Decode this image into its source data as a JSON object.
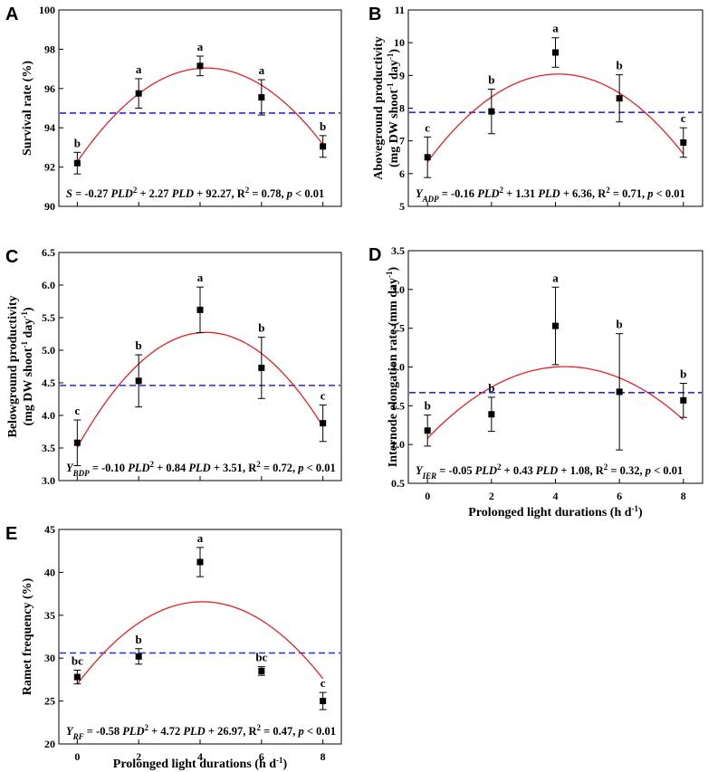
{
  "colors": {
    "fit": "#e8202a",
    "mean": "#2a2ae0",
    "axis": "#000000"
  },
  "chart_data": [
    {
      "panel": "A",
      "type": "scatter",
      "x": [
        0,
        2,
        4,
        6,
        8
      ],
      "values": [
        92.2,
        95.75,
        97.15,
        95.55,
        93.05
      ],
      "errors": [
        0.55,
        0.75,
        0.5,
        0.9,
        0.55
      ],
      "letters": [
        "b",
        "a",
        "a",
        "a",
        "b"
      ],
      "fit": {
        "a": -0.27,
        "b": 2.27,
        "c": 92.27
      },
      "mean_line": 94.75,
      "ylim": [
        90,
        100
      ],
      "yticks": [
        "90",
        "92",
        "94",
        "96",
        "98",
        "100"
      ],
      "ylabel": "Survival rate (%)",
      "eq": {
        "lead": "S",
        "sub": "",
        "c1": "-0.27",
        "c2": "+ 2.27",
        "c3": "+ 92.27",
        "r2": "= 0.78,",
        "p": "< 0.01"
      }
    },
    {
      "panel": "B",
      "type": "scatter",
      "x": [
        0,
        2,
        4,
        6,
        8
      ],
      "values": [
        6.5,
        7.9,
        9.7,
        8.3,
        6.95
      ],
      "errors": [
        0.62,
        0.68,
        0.45,
        0.72,
        0.45
      ],
      "letters": [
        "c",
        "b",
        "a",
        "b",
        "c"
      ],
      "fit": {
        "a": -0.16,
        "b": 1.31,
        "c": 6.36
      },
      "mean_line": 7.87,
      "ylim": [
        5,
        11
      ],
      "yticks": [
        "5",
        "6",
        "7",
        "8",
        "9",
        "10",
        "11"
      ],
      "ylabel": [
        "Aboveground productivity",
        "(mg DW shoot",
        "-1",
        " day",
        "-1",
        ")"
      ],
      "eq": {
        "lead": "Y",
        "sub": "ADP",
        "c1": "-0.16",
        "c2": "+ 1.31",
        "c3": "+ 6.36",
        "r2": "= 0.71,",
        "p": "< 0.01"
      }
    },
    {
      "panel": "C",
      "type": "scatter",
      "x": [
        0,
        2,
        4,
        6,
        8
      ],
      "values": [
        3.58,
        4.53,
        5.62,
        4.73,
        3.88
      ],
      "errors": [
        0.35,
        0.4,
        0.35,
        0.47,
        0.28
      ],
      "letters": [
        "c",
        "b",
        "a",
        "b",
        "c"
      ],
      "fit": {
        "a": -0.1,
        "b": 0.84,
        "c": 3.51
      },
      "mean_line": 4.46,
      "ylim": [
        3.0,
        6.5
      ],
      "yticks": [
        "3.0",
        "3.5",
        "4.0",
        "4.5",
        "5.0",
        "5.5",
        "6.0",
        "6.5"
      ],
      "ylabel": [
        "Belowground productivity",
        "(mg DW shoot",
        "-1",
        " day",
        "-1",
        ")"
      ],
      "eq": {
        "lead": "Y",
        "sub": "BDP",
        "c1": "-0.10",
        "c2": "+ 0.84",
        "c3": "+ 3.51",
        "r2": "= 0.72,",
        "p": "< 0.01"
      }
    },
    {
      "panel": "D",
      "type": "scatter",
      "x": [
        0,
        2,
        4,
        6,
        8
      ],
      "values": [
        1.18,
        1.39,
        2.53,
        1.68,
        1.57
      ],
      "errors": [
        0.2,
        0.22,
        0.5,
        0.75,
        0.22
      ],
      "letters": [
        "b",
        "b",
        "a",
        "b",
        "b"
      ],
      "fit": {
        "a": -0.05,
        "b": 0.43,
        "c": 1.08
      },
      "mean_line": 1.67,
      "ylim": [
        0.5,
        3.5
      ],
      "yticks": [
        "0.5",
        "1.0",
        "1.5",
        "2.0",
        "2.5",
        "3.0",
        "3.5"
      ],
      "xticks": [
        "0",
        "2",
        "4",
        "6",
        "8"
      ],
      "xlabel": [
        "Prolonged light durations  (h d",
        "-1",
        ")"
      ],
      "ylabel": [
        "Internode elongation rate  (mm day",
        "-1",
        ")"
      ],
      "eq": {
        "lead": "Y",
        "sub": "IER",
        "c1": "-0.05",
        "c2": "+ 0.43",
        "c3": "+ 1.08",
        "r2": "= 0.32,",
        "p": "< 0.01"
      }
    },
    {
      "panel": "E",
      "type": "scatter",
      "x": [
        0,
        2,
        4,
        6,
        8
      ],
      "values": [
        27.8,
        30.2,
        41.2,
        28.5,
        25.0
      ],
      "errors": [
        0.8,
        0.9,
        1.7,
        0.5,
        1.0
      ],
      "letters": [
        "bc",
        "b",
        "a",
        "bc",
        "c"
      ],
      "fit": {
        "a": -0.58,
        "b": 4.72,
        "c": 26.97
      },
      "mean_line": 30.6,
      "ylim": [
        20,
        45
      ],
      "yticks": [
        "20",
        "25",
        "30",
        "35",
        "40",
        "45"
      ],
      "xticks": [
        "0",
        "2",
        "4",
        "6",
        "8"
      ],
      "xlabel": [
        "Prolonged light durations  (h d",
        "-1",
        ")"
      ],
      "ylabel": "Ramet frequency (%)",
      "eq": {
        "lead": "Y",
        "sub": "RF",
        "c1": "-0.58",
        "c2": "+ 4.72",
        "c3": "+ 26.97",
        "r2": "= 0.47,",
        "p": "< 0.01"
      }
    }
  ],
  "eq_tokens": {
    "pld": "PLD",
    "sq": "2",
    "r": "R",
    "p": "p"
  }
}
